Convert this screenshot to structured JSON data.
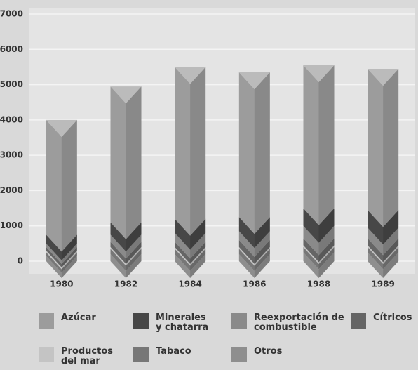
{
  "chart_data": {
    "type": "stacked_bar",
    "categories": [
      "1980",
      "1982",
      "1984",
      "1986",
      "1988",
      "1989"
    ],
    "series": [
      {
        "name": "Otros",
        "color": "#8e8e8e",
        "values": [
          150,
          200,
          200,
          200,
          250,
          250
        ]
      },
      {
        "name": "Tabaco",
        "color": "#777777",
        "values": [
          100,
          150,
          150,
          150,
          150,
          150
        ]
      },
      {
        "name": "Productos del mar",
        "color": "#c4c4c4",
        "values": [
          50,
          50,
          50,
          50,
          50,
          50
        ]
      },
      {
        "name": "Cítricos",
        "color": "#656565",
        "values": [
          100,
          150,
          150,
          200,
          200,
          200
        ]
      },
      {
        "name": "Reexportación de combustible",
        "color": "#8a8a8a",
        "values": [
          100,
          200,
          250,
          250,
          350,
          300
        ]
      },
      {
        "name": "Minerales y chatarra",
        "color": "#474747",
        "values": [
          250,
          350,
          400,
          400,
          500,
          500
        ]
      },
      {
        "name": "Azúcar",
        "color": "#9c9c9c",
        "values": [
          3250,
          3850,
          4300,
          4100,
          4050,
          4000
        ]
      }
    ],
    "legend_order": [
      6,
      5,
      4,
      3,
      2,
      1,
      0
    ],
    "ylim": [
      0,
      7000
    ],
    "yticks": [
      0,
      1000,
      2000,
      3000,
      4000,
      5000,
      6000,
      7000
    ],
    "grid": true
  }
}
